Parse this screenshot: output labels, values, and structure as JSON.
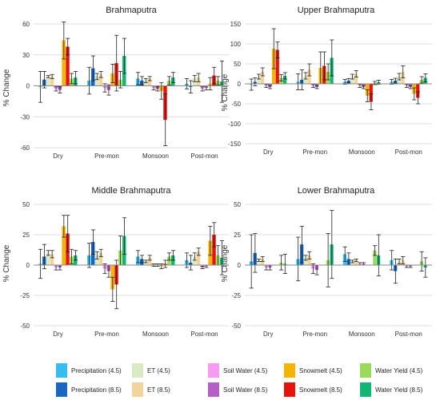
{
  "legend": [
    {
      "label": "Precipitation (4.5)",
      "color": "#35BDEE"
    },
    {
      "label": "ET (4.5)",
      "color": "#D9EAC4"
    },
    {
      "label": "Soil Water (4.5)",
      "color": "#F59CF2"
    },
    {
      "label": "Snowmelt (4.5)",
      "color": "#F5B400"
    },
    {
      "label": "Water Yield (4.5)",
      "color": "#9AD95A"
    },
    {
      "label": "Precipitation (8.5)",
      "color": "#1A66C0"
    },
    {
      "label": "ET (8.5)",
      "color": "#F2D39B"
    },
    {
      "label": "Soil Water (8.5)",
      "color": "#B45FC4"
    },
    {
      "label": "Snowmelt (8.5)",
      "color": "#E8120C"
    },
    {
      "label": "Water Yield (8.5)",
      "color": "#12B574"
    }
  ],
  "chart_data": [
    {
      "type": "bar",
      "title": "Brahmaputra",
      "ylabel": "% Change",
      "ylim": [
        -60,
        60
      ],
      "yticks": [
        60,
        30,
        0,
        -30,
        -60
      ],
      "categories": [
        "Dry",
        "Pre-mon",
        "Monsoon",
        "Post-mon"
      ],
      "series": [
        {
          "name": "Precipitation (4.5)",
          "values": [
            -1,
            5,
            7,
            2
          ],
          "err": [
            15,
            13,
            6,
            5
          ]
        },
        {
          "name": "Precipitation (8.5)",
          "values": [
            6,
            17,
            5,
            -1
          ],
          "err": [
            8,
            12,
            4,
            6
          ]
        },
        {
          "name": "ET (4.5)",
          "values": [
            9,
            9,
            5,
            7
          ],
          "err": [
            1,
            3,
            2,
            3
          ]
        },
        {
          "name": "ET (8.5)",
          "values": [
            9,
            11,
            7,
            8
          ],
          "err": [
            2,
            3,
            2,
            4
          ]
        },
        {
          "name": "Soil Water (4.5)",
          "values": [
            -3,
            -2,
            -2,
            -3
          ],
          "err": [
            2,
            4,
            2,
            2
          ]
        },
        {
          "name": "Soil Water (8.5)",
          "values": [
            -4,
            -4,
            -3,
            -2
          ],
          "err": [
            3,
            5,
            2,
            2
          ]
        },
        {
          "name": "Snowmelt (4.5)",
          "values": [
            44,
            12,
            -5,
            2
          ],
          "err": [
            18,
            9,
            8,
            6
          ]
        },
        {
          "name": "Snowmelt (8.5)",
          "values": [
            38,
            22,
            -33,
            10
          ],
          "err": [
            8,
            27,
            25,
            8
          ]
        },
        {
          "name": "Water Yield (4.5)",
          "values": [
            7,
            6,
            5,
            5
          ],
          "err": [
            5,
            8,
            4,
            4
          ]
        },
        {
          "name": "Water Yield (8.5)",
          "values": [
            8,
            29,
            8,
            4
          ],
          "err": [
            6,
            17,
            5,
            20
          ]
        }
      ]
    },
    {
      "type": "bar",
      "title": "Upper Brahmaputra",
      "ylabel": "% Change",
      "ylim": [
        -150,
        150
      ],
      "yticks": [
        150,
        100,
        50,
        0,
        -50,
        -100,
        -150
      ],
      "categories": [
        "Dry",
        "Pre-mon",
        "Monsoon",
        "Post-mon"
      ],
      "series": [
        {
          "name": "Precipitation (4.5)",
          "values": [
            -2,
            5,
            5,
            5
          ],
          "err": [
            14,
            20,
            6,
            6
          ]
        },
        {
          "name": "Precipitation (8.5)",
          "values": [
            5,
            10,
            8,
            8
          ],
          "err": [
            10,
            25,
            5,
            6
          ]
        },
        {
          "name": "ET (4.5)",
          "values": [
            18,
            20,
            18,
            18
          ],
          "err": [
            6,
            8,
            6,
            8
          ]
        },
        {
          "name": "ET (8.5)",
          "values": [
            30,
            35,
            25,
            30
          ],
          "err": [
            10,
            15,
            8,
            15
          ]
        },
        {
          "name": "Soil Water (4.5)",
          "values": [
            -5,
            -5,
            -5,
            -5
          ],
          "err": [
            4,
            4,
            4,
            4
          ]
        },
        {
          "name": "Soil Water (8.5)",
          "values": [
            -8,
            -8,
            -8,
            -8
          ],
          "err": [
            4,
            4,
            4,
            4
          ]
        },
        {
          "name": "Snowmelt (4.5)",
          "values": [
            88,
            40,
            -30,
            -25
          ],
          "err": [
            50,
            40,
            15,
            15
          ]
        },
        {
          "name": "Snowmelt (8.5)",
          "values": [
            85,
            45,
            -45,
            -35
          ],
          "err": [
            20,
            35,
            20,
            15
          ]
        },
        {
          "name": "Water Yield (4.5)",
          "values": [
            15,
            30,
            2,
            10
          ],
          "err": [
            8,
            20,
            4,
            8
          ]
        },
        {
          "name": "Water Yield (8.5)",
          "values": [
            20,
            65,
            4,
            15
          ],
          "err": [
            8,
            45,
            5,
            10
          ]
        }
      ]
    },
    {
      "type": "bar",
      "title": "Middle Brahmaputra",
      "ylabel": "% Change",
      "ylim": [
        -50,
        50
      ],
      "yticks": [
        50,
        25,
        0,
        -25,
        -50
      ],
      "categories": [
        "Dry",
        "Pre-mon",
        "Monsoon",
        "Post-mon"
      ],
      "series": [
        {
          "name": "Precipitation (4.5)",
          "values": [
            1,
            8,
            7,
            4
          ],
          "err": [
            12,
            10,
            5,
            6
          ]
        },
        {
          "name": "Precipitation (8.5)",
          "values": [
            7,
            19,
            5,
            2
          ],
          "err": [
            10,
            10,
            3,
            6
          ]
        },
        {
          "name": "ET (4.5)",
          "values": [
            10,
            8,
            3,
            7
          ],
          "err": [
            2,
            3,
            1,
            3
          ]
        },
        {
          "name": "ET (8.5)",
          "values": [
            9,
            10,
            6,
            11
          ],
          "err": [
            3,
            3,
            2,
            3
          ]
        },
        {
          "name": "Soil Water (4.5)",
          "values": [
            -2,
            -3,
            0,
            -2
          ],
          "err": [
            2,
            4,
            1,
            1
          ]
        },
        {
          "name": "Soil Water (8.5)",
          "values": [
            -2,
            -5,
            0,
            -1
          ],
          "err": [
            2,
            5,
            1,
            1
          ]
        },
        {
          "name": "Snowmelt (4.5)",
          "values": [
            32,
            -20,
            -1,
            20
          ],
          "err": [
            9,
            10,
            2,
            12
          ]
        },
        {
          "name": "Snowmelt (8.5)",
          "values": [
            26,
            -16,
            1,
            25
          ],
          "err": [
            15,
            20,
            3,
            10
          ]
        },
        {
          "name": "Water Yield (4.5)",
          "values": [
            7,
            12,
            7,
            8
          ],
          "err": [
            6,
            12,
            3,
            8
          ]
        },
        {
          "name": "Water Yield (8.5)",
          "values": [
            8,
            24,
            8,
            6
          ],
          "err": [
            4,
            15,
            4,
            14
          ]
        }
      ]
    },
    {
      "type": "bar",
      "title": "Lower Brahmaputra",
      "ylabel": "% Change",
      "ylim": [
        -50,
        50
      ],
      "yticks": [
        50,
        25,
        0,
        -25,
        -50
      ],
      "categories": [
        "Dry",
        "Pre-mon",
        "Monsoon",
        "Post-mon"
      ],
      "series": [
        {
          "name": "Precipitation (4.5)",
          "values": [
            3,
            5,
            9,
            4
          ],
          "err": [
            22,
            18,
            6,
            8
          ]
        },
        {
          "name": "Precipitation (8.5)",
          "values": [
            10,
            17,
            5,
            -5
          ],
          "err": [
            16,
            15,
            5,
            10
          ]
        },
        {
          "name": "ET (4.5)",
          "values": [
            4,
            6,
            3,
            3
          ],
          "err": [
            1,
            2,
            1,
            2
          ]
        },
        {
          "name": "ET (8.5)",
          "values": [
            5,
            8,
            4,
            4
          ],
          "err": [
            2,
            3,
            1,
            3
          ]
        },
        {
          "name": "Soil Water (4.5)",
          "values": [
            -2,
            -3,
            1,
            -1
          ],
          "err": [
            2,
            4,
            1,
            1
          ]
        },
        {
          "name": "Soil Water (8.5)",
          "values": [
            -2,
            -4,
            1,
            -1
          ],
          "err": [
            2,
            4,
            1,
            1
          ]
        },
        {
          "name": "Snowmelt (4.5)",
          "values": [
            0,
            0,
            0,
            0
          ],
          "err": [
            0,
            0,
            0,
            0
          ]
        },
        {
          "name": "Snowmelt (8.5)",
          "values": [
            0,
            0,
            0,
            0
          ],
          "err": [
            0,
            0,
            0,
            0
          ]
        },
        {
          "name": "Water Yield (4.5)",
          "values": [
            2,
            4,
            12,
            3
          ],
          "err": [
            6,
            22,
            4,
            8
          ]
        },
        {
          "name": "Water Yield (8.5)",
          "values": [
            1,
            17,
            8,
            -2
          ],
          "err": [
            8,
            28,
            17,
            8
          ]
        }
      ]
    }
  ]
}
